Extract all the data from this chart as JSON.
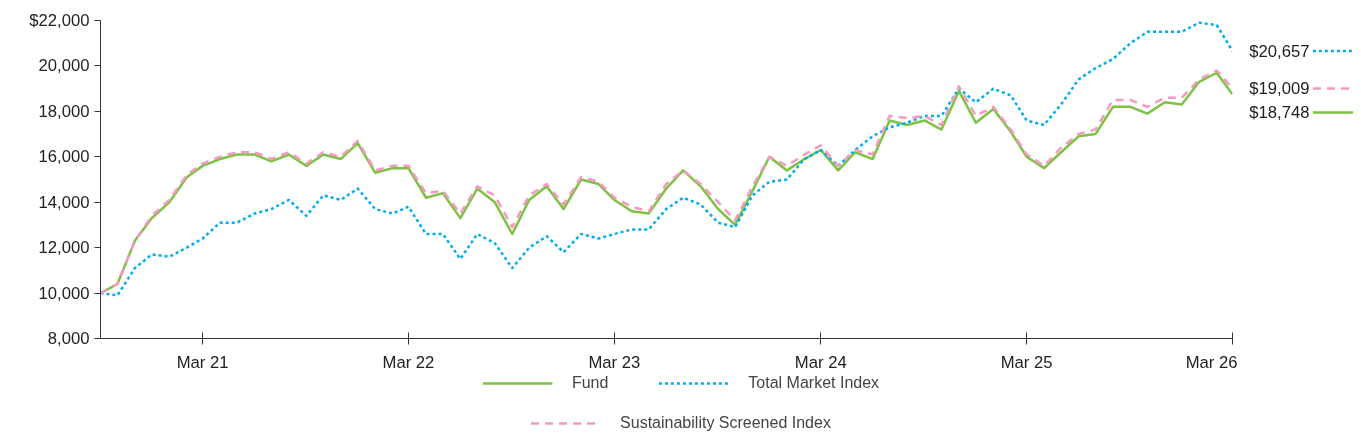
{
  "chart_data": {
    "type": "line",
    "x": [
      "2020-09",
      "2020-10",
      "2020-11",
      "2020-12",
      "2021-01",
      "2021-02",
      "2021-03",
      "2021-04",
      "2021-05",
      "2021-06",
      "2021-07",
      "2021-08",
      "2021-09",
      "2021-10",
      "2021-11",
      "2021-12",
      "2022-01",
      "2022-02",
      "2022-03",
      "2022-04",
      "2022-05",
      "2022-06",
      "2022-07",
      "2022-08",
      "2022-09",
      "2022-10",
      "2022-11",
      "2022-12",
      "2023-01",
      "2023-02",
      "2023-03",
      "2023-04",
      "2023-05",
      "2023-06",
      "2023-07",
      "2023-08",
      "2023-09",
      "2023-10",
      "2023-11",
      "2023-12",
      "2024-01",
      "2024-02",
      "2024-03",
      "2024-04",
      "2024-05",
      "2024-06",
      "2024-07",
      "2024-08",
      "2024-09",
      "2024-10",
      "2024-11",
      "2024-12",
      "2025-01",
      "2025-02",
      "2025-03",
      "2025-04",
      "2025-05",
      "2025-06",
      "2025-07",
      "2025-08",
      "2025-09",
      "2025-10",
      "2025-11",
      "2025-12",
      "2026-01",
      "2026-02",
      "2026-03"
    ],
    "series": [
      {
        "name": "Fund",
        "color": "#7dc243",
        "line_style": "solid",
        "values": [
          10000,
          10400,
          12300,
          13300,
          14000,
          15100,
          15600,
          15900,
          16100,
          16100,
          15800,
          16100,
          15600,
          16100,
          15900,
          16600,
          15300,
          15500,
          15500,
          14200,
          14400,
          13300,
          14600,
          14000,
          12600,
          14100,
          14700,
          13700,
          15000,
          14800,
          14100,
          13600,
          13500,
          14600,
          15400,
          14700,
          13700,
          13000,
          14500,
          16000,
          15400,
          15900,
          16300,
          15400,
          16200,
          15900,
          17600,
          17400,
          17600,
          17200,
          18900,
          17500,
          18100,
          17100,
          16000,
          15500,
          16200,
          16900,
          17000,
          18200,
          18200,
          17900,
          18400,
          18300,
          19300,
          19700,
          18748
        ],
        "value_labels": [
          null,
          null,
          null,
          null,
          null,
          null,
          null,
          null,
          null,
          null,
          null,
          null,
          null,
          null,
          null,
          null,
          null,
          null,
          null,
          null,
          null,
          null,
          null,
          null,
          null,
          null,
          null,
          null,
          null,
          null,
          null,
          null,
          null,
          null,
          null,
          null,
          null,
          null,
          null,
          null,
          null,
          null,
          null,
          null,
          null,
          null,
          null,
          null,
          null,
          null,
          null,
          null,
          null,
          null,
          null,
          null,
          null,
          null,
          null,
          null,
          null,
          null,
          null,
          null,
          null,
          null,
          "$18,748"
        ]
      },
      {
        "name": "Total Market Index",
        "color": "#00aeef",
        "line_style": "dotted",
        "values": [
          10000,
          9900,
          11100,
          11700,
          11600,
          12000,
          12400,
          13100,
          13100,
          13500,
          13700,
          14100,
          13400,
          14300,
          14100,
          14600,
          13700,
          13500,
          13800,
          12600,
          12600,
          11500,
          12600,
          12200,
          11100,
          12000,
          12500,
          11800,
          12600,
          12400,
          12600,
          12800,
          12800,
          13700,
          14200,
          13900,
          13100,
          12900,
          14300,
          14900,
          15000,
          15900,
          16300,
          15600,
          16300,
          16900,
          17300,
          17500,
          17800,
          17800,
          19000,
          18400,
          19000,
          18700,
          17600,
          17400,
          18300,
          19400,
          19900,
          20300,
          21000,
          21500,
          21500,
          21500,
          21900,
          21800,
          20657
        ],
        "value_labels": [
          null,
          null,
          null,
          null,
          null,
          null,
          null,
          null,
          null,
          null,
          null,
          null,
          null,
          null,
          null,
          null,
          null,
          null,
          null,
          null,
          null,
          null,
          null,
          null,
          null,
          null,
          null,
          null,
          null,
          null,
          null,
          null,
          null,
          null,
          null,
          null,
          null,
          null,
          null,
          null,
          null,
          null,
          null,
          null,
          null,
          null,
          null,
          null,
          null,
          null,
          null,
          null,
          null,
          null,
          null,
          null,
          null,
          null,
          null,
          null,
          null,
          null,
          null,
          null,
          null,
          null,
          "$20,657"
        ]
      },
      {
        "name": "Sustainability Screened Index",
        "color": "#f49ac1",
        "line_style": "dashed",
        "values": [
          10000,
          10400,
          12300,
          13400,
          14100,
          15200,
          15700,
          16000,
          16200,
          16200,
          15900,
          16200,
          15700,
          16200,
          16000,
          16700,
          15400,
          15600,
          15600,
          14400,
          14500,
          13500,
          14700,
          14300,
          12900,
          14300,
          14800,
          13900,
          15100,
          14900,
          14200,
          13800,
          13600,
          14800,
          15400,
          14800,
          14000,
          13200,
          14700,
          16000,
          15600,
          16100,
          16500,
          15600,
          16300,
          16100,
          17800,
          17700,
          17800,
          17400,
          19100,
          17800,
          18200,
          17200,
          16100,
          15600,
          16400,
          17000,
          17200,
          18500,
          18500,
          18200,
          18600,
          18600,
          19400,
          19800,
          19009
        ],
        "value_labels": [
          null,
          null,
          null,
          null,
          null,
          null,
          null,
          null,
          null,
          null,
          null,
          null,
          null,
          null,
          null,
          null,
          null,
          null,
          null,
          null,
          null,
          null,
          null,
          null,
          null,
          null,
          null,
          null,
          null,
          null,
          null,
          null,
          null,
          null,
          null,
          null,
          null,
          null,
          null,
          null,
          null,
          null,
          null,
          null,
          null,
          null,
          null,
          null,
          null,
          null,
          null,
          null,
          null,
          null,
          null,
          null,
          null,
          null,
          null,
          null,
          null,
          null,
          null,
          null,
          null,
          null,
          "$19,009"
        ]
      }
    ],
    "xlim": [
      "2020-09",
      "2026-03"
    ],
    "xticks": [
      {
        "value": "2021-03",
        "label": "Mar 21"
      },
      {
        "value": "2022-03",
        "label": "Mar 22"
      },
      {
        "value": "2023-03",
        "label": "Mar 23"
      },
      {
        "value": "2024-03",
        "label": "Mar 24"
      },
      {
        "value": "2025-03",
        "label": "Mar 25"
      },
      {
        "value": "2026-03",
        "label": "Mar 26"
      }
    ],
    "ylim": [
      8000,
      22000
    ],
    "yticks": [
      {
        "value": 8000,
        "label": "8,000"
      },
      {
        "value": 10000,
        "label": "10,000"
      },
      {
        "value": 12000,
        "label": "12,000"
      },
      {
        "value": 14000,
        "label": "14,000"
      },
      {
        "value": 16000,
        "label": "16,000"
      },
      {
        "value": 18000,
        "label": "18,000"
      },
      {
        "value": 20000,
        "label": "20,000"
      },
      {
        "value": 22000,
        "label": "$22,000"
      }
    ],
    "grid": false,
    "legend": "bottom",
    "marker": "none"
  }
}
